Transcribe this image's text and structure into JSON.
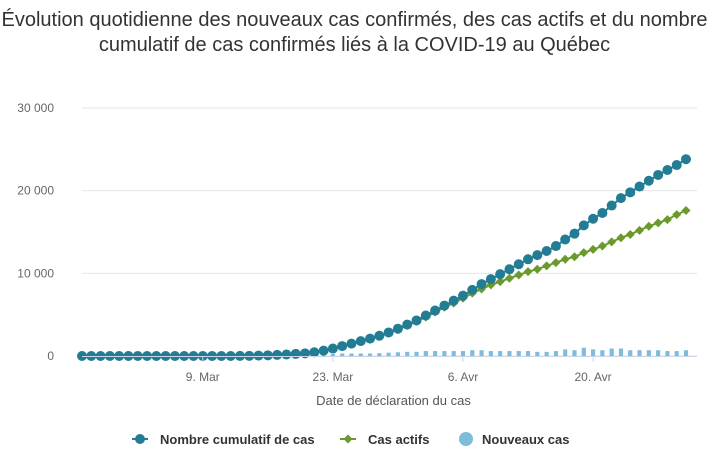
{
  "chart_data": {
    "type": "line",
    "title": "Évolution quotidienne des nouveaux cas confirmés, des cas actifs et du nombre cumulatif de cas confirmés liés à la COVID-19 au Québec",
    "xlabel": "Date de déclaration du cas",
    "ylabel": "",
    "ylim": [
      0,
      30000
    ],
    "y_ticks": [
      "0",
      "10 000",
      "20 000",
      "30 000"
    ],
    "x_ticks": [
      "9. Mar",
      "23. Mar",
      "6. Avr",
      "20. Avr"
    ],
    "grid": true,
    "legend_position": "bottom",
    "x": [
      "2020-02-25",
      "2020-02-26",
      "2020-02-27",
      "2020-02-28",
      "2020-02-29",
      "2020-03-01",
      "2020-03-02",
      "2020-03-03",
      "2020-03-04",
      "2020-03-05",
      "2020-03-06",
      "2020-03-07",
      "2020-03-08",
      "2020-03-09",
      "2020-03-10",
      "2020-03-11",
      "2020-03-12",
      "2020-03-13",
      "2020-03-14",
      "2020-03-15",
      "2020-03-16",
      "2020-03-17",
      "2020-03-18",
      "2020-03-19",
      "2020-03-20",
      "2020-03-21",
      "2020-03-22",
      "2020-03-23",
      "2020-03-24",
      "2020-03-25",
      "2020-03-26",
      "2020-03-27",
      "2020-03-28",
      "2020-03-29",
      "2020-03-30",
      "2020-03-31",
      "2020-04-01",
      "2020-04-02",
      "2020-04-03",
      "2020-04-04",
      "2020-04-05",
      "2020-04-06",
      "2020-04-07",
      "2020-04-08",
      "2020-04-09",
      "2020-04-10",
      "2020-04-11",
      "2020-04-12",
      "2020-04-13",
      "2020-04-14",
      "2020-04-15",
      "2020-04-16",
      "2020-04-17",
      "2020-04-18",
      "2020-04-19",
      "2020-04-20",
      "2020-04-21",
      "2020-04-22",
      "2020-04-23",
      "2020-04-24",
      "2020-04-25",
      "2020-04-26",
      "2020-04-27",
      "2020-04-28",
      "2020-04-29",
      "2020-04-30"
    ],
    "series": [
      {
        "name": "Nombre cumulatif de cas",
        "color": "#217c94",
        "marker": "circle",
        "values": [
          0,
          0,
          0,
          0,
          0,
          0,
          0,
          0,
          0,
          0,
          0,
          0,
          0,
          0,
          0,
          0,
          0,
          10,
          20,
          50,
          80,
          130,
          180,
          250,
          320,
          450,
          650,
          900,
          1200,
          1500,
          1800,
          2100,
          2450,
          2850,
          3300,
          3800,
          4300,
          4900,
          5500,
          6100,
          6700,
          7300,
          8000,
          8700,
          9300,
          9900,
          10500,
          11100,
          11700,
          12200,
          12700,
          13300,
          14100,
          14800,
          15800,
          16600,
          17300,
          18200,
          19100,
          19800,
          20500,
          21200,
          21900,
          22500,
          23100,
          23800
        ]
      },
      {
        "name": "Cas actifs",
        "color": "#6b9a2c",
        "marker": "diamond",
        "values": [
          0,
          0,
          0,
          0,
          0,
          0,
          0,
          0,
          0,
          0,
          0,
          0,
          0,
          0,
          0,
          0,
          0,
          10,
          20,
          50,
          80,
          130,
          180,
          250,
          320,
          450,
          650,
          900,
          1200,
          1500,
          1800,
          2100,
          2400,
          2800,
          3200,
          3700,
          4200,
          4700,
          5300,
          5900,
          6400,
          7000,
          7600,
          8100,
          8600,
          9000,
          9400,
          9800,
          10200,
          10500,
          10900,
          11300,
          11700,
          12000,
          12500,
          12900,
          13300,
          13800,
          14300,
          14700,
          15200,
          15700,
          16100,
          16500,
          17100,
          17600
        ]
      },
      {
        "name": "Nouveaux cas",
        "color": "#7fbcd9",
        "marker": "bar",
        "values": [
          0,
          0,
          0,
          0,
          0,
          0,
          0,
          0,
          0,
          0,
          0,
          0,
          0,
          0,
          0,
          0,
          0,
          10,
          10,
          30,
          30,
          50,
          50,
          70,
          70,
          130,
          200,
          250,
          300,
          300,
          300,
          300,
          350,
          400,
          450,
          500,
          500,
          600,
          600,
          600,
          600,
          600,
          700,
          700,
          600,
          600,
          600,
          600,
          600,
          500,
          500,
          600,
          800,
          700,
          1000,
          800,
          700,
          900,
          900,
          700,
          700,
          700,
          700,
          600,
          600,
          700
        ]
      }
    ]
  }
}
